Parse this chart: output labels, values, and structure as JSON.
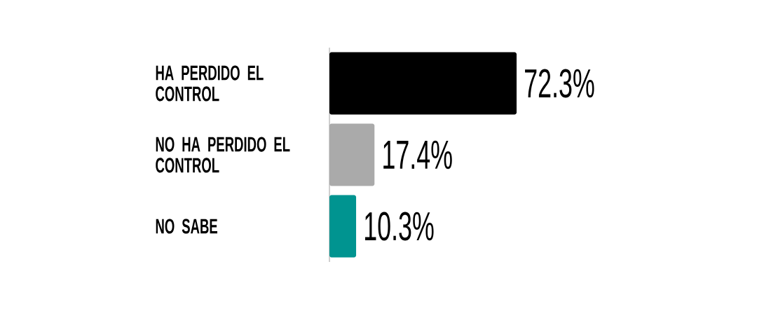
{
  "chart_data": {
    "type": "bar",
    "orientation": "horizontal",
    "categories": [
      "HA PERDIDO EL CONTROL",
      "NO HA PERDIDO EL CONTROL",
      "NO SABE"
    ],
    "values": [
      72.3,
      17.4,
      10.3
    ],
    "colors": [
      "#000000",
      "#aaaaaa",
      "#009490"
    ],
    "value_labels": [
      "72.3%",
      "17.4%",
      "10.3%"
    ],
    "tick_labels": "y"
  }
}
